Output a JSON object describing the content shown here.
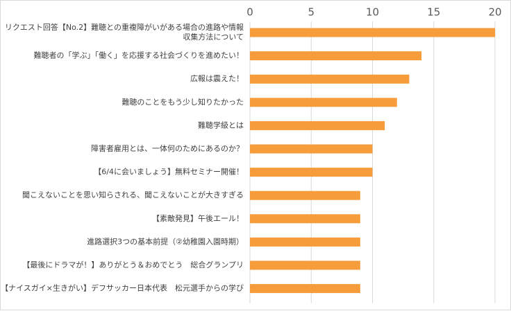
{
  "chart_data": {
    "type": "bar",
    "orientation": "horizontal",
    "title": "",
    "xlabel": "",
    "ylabel": "",
    "xlim": [
      0,
      20
    ],
    "x_ticks": [
      0,
      5,
      10,
      15,
      20
    ],
    "x_axis_position": "top",
    "grid": true,
    "legend": "none",
    "bar_color": "#F79C3A",
    "categories": [
      [
        "リクエスト回答【No.2】難聴との重複障がいがある場合の進路や情報",
        "収集方法について"
      ],
      [
        "難聴者の「学ぶ」「働く」を応援する社会づくりを進めたい！"
      ],
      [
        "広報は震えた！"
      ],
      [
        "難聴のことをもう少し知りたかった"
      ],
      [
        "難聴学級とは"
      ],
      [
        "障害者雇用とは、一体何のためにあるのか？"
      ],
      [
        "【6/4に会いましょう】無料セミナー開催！"
      ],
      [
        "聞こえないことを思い知らされる、聞こえないことが大きすぎる"
      ],
      [
        "【素敵発見】午後エール！"
      ],
      [
        "進路選択3つの基本前提（②幼稚園入園時期）"
      ],
      [
        "【最後にドラマが！】ありがとう＆おめでとう　総合グランプリ"
      ],
      [
        "【ナイスガイ×生きがい】デフサッカー日本代表　松元選手からの学び"
      ]
    ],
    "values": [
      20,
      14,
      13,
      12,
      11,
      10,
      10,
      9,
      9,
      9,
      9,
      9
    ]
  }
}
